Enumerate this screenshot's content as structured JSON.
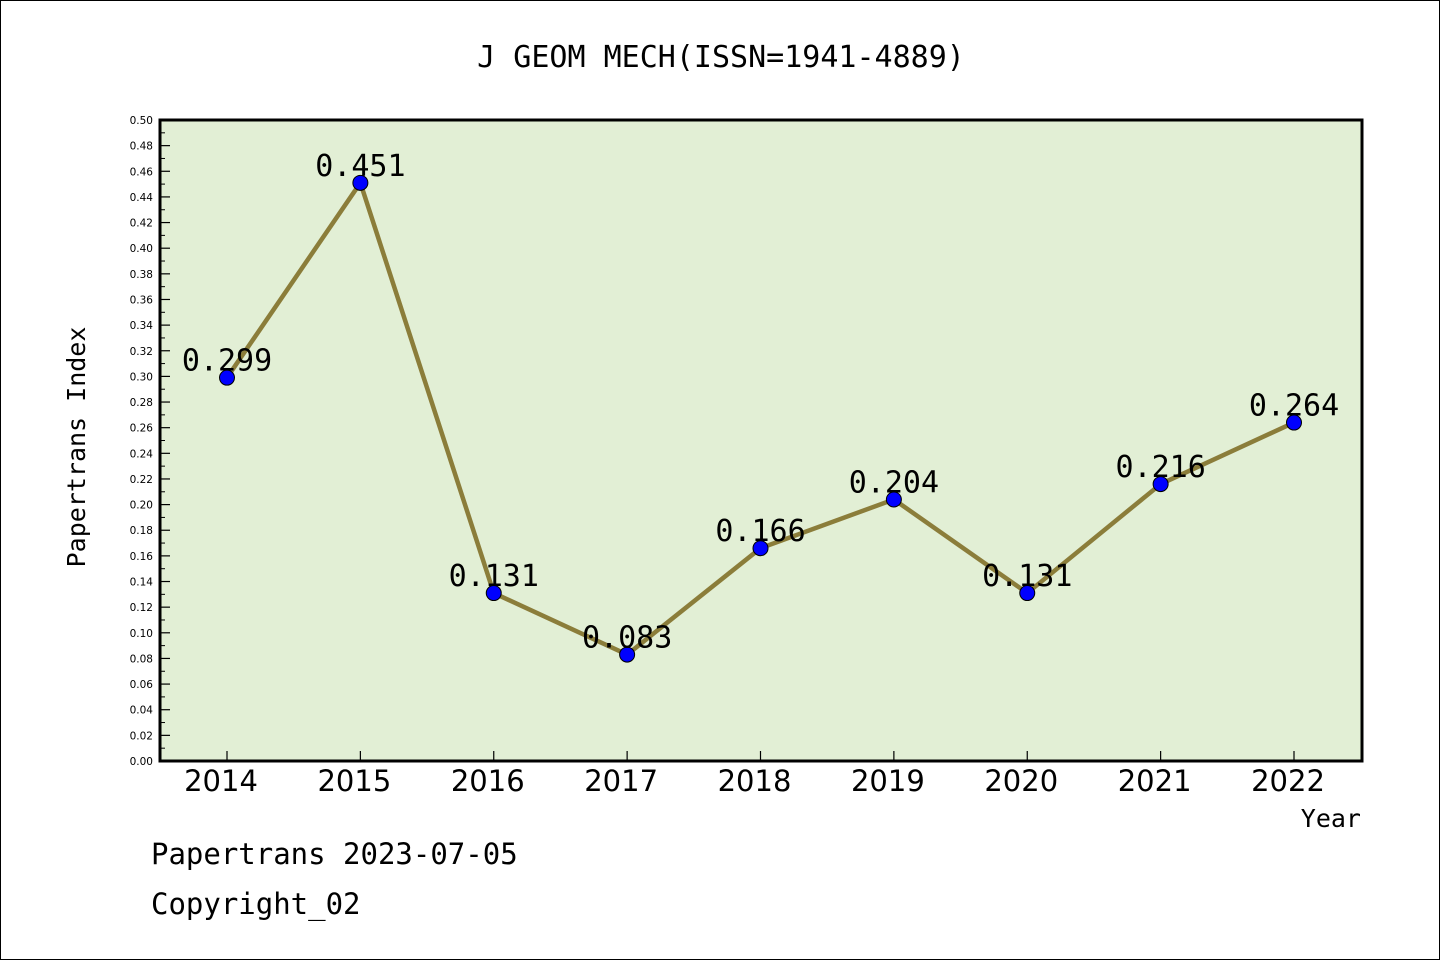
{
  "chart_data": {
    "type": "line",
    "title": "J GEOM MECH(ISSN=1941-4889)",
    "xlabel": "Year",
    "ylabel": "Papertrans Index",
    "x": [
      "2014",
      "2015",
      "2016",
      "2017",
      "2018",
      "2019",
      "2020",
      "2021",
      "2022"
    ],
    "series": [
      {
        "values": [
          0.299,
          0.451,
          0.131,
          0.083,
          0.166,
          0.204,
          0.131,
          0.216,
          0.264
        ],
        "labels": [
          "0.299",
          "0.451",
          "0.131",
          "0.083",
          "0.166",
          "0.204",
          "0.131",
          "0.216",
          "0.264"
        ]
      }
    ],
    "ylim": [
      0,
      0.5
    ],
    "yticks": [
      "0.00",
      "0.02",
      "0.04",
      "0.06",
      "0.08",
      "0.10",
      "0.12",
      "0.14",
      "0.16",
      "0.18",
      "0.20",
      "0.22",
      "0.24",
      "0.26",
      "0.28",
      "0.30",
      "0.32",
      "0.34",
      "0.36",
      "0.38",
      "0.40",
      "0.42",
      "0.44",
      "0.46",
      "0.48",
      "0.50"
    ],
    "grid": false,
    "colors": {
      "plot_background": "#e2efd5",
      "line": "#8b7d3a",
      "marker": "#0000ff"
    }
  },
  "footer": {
    "line1": "Papertrans 2023-07-05",
    "line2": "Copyright_02"
  }
}
